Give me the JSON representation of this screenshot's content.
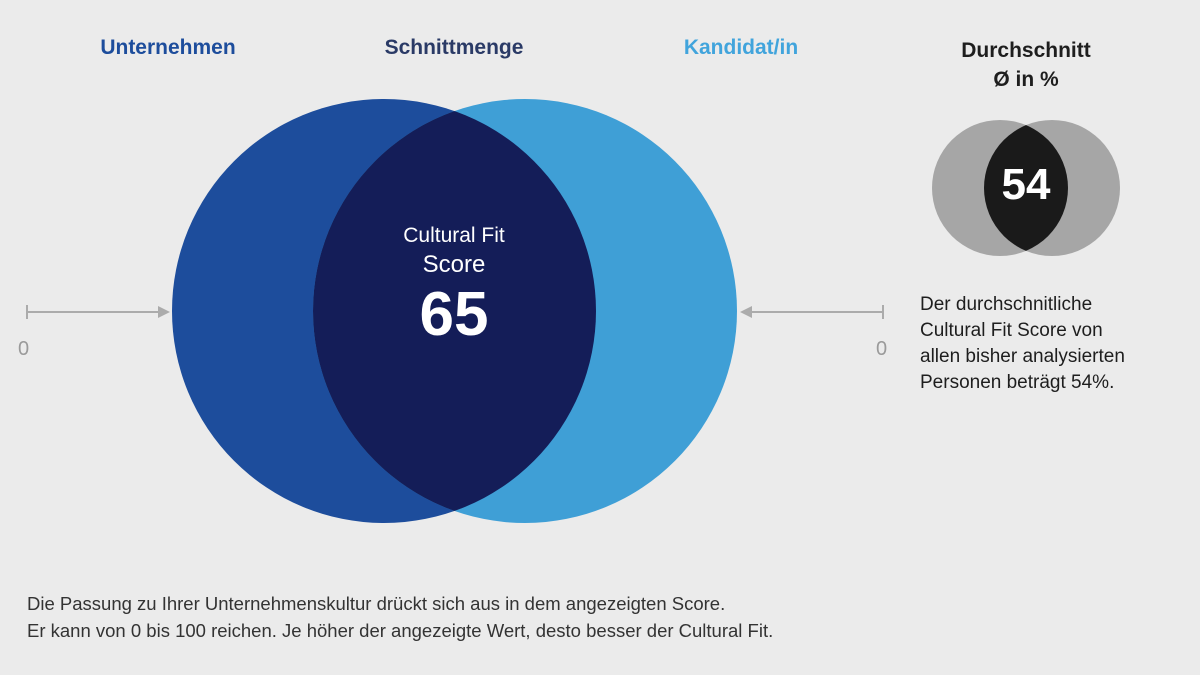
{
  "headers": {
    "company": "Unternehmen",
    "intersection": "Schnittmenge",
    "candidate": "Kandidat/in"
  },
  "score": {
    "label_line1": "Cultural Fit",
    "label_line2": "Score",
    "value": "65"
  },
  "scale": {
    "left_min": "0",
    "right_min": "0"
  },
  "average": {
    "title_line1": "Durchschnitt",
    "title_line2": "Ø in %",
    "value": "54",
    "description_lines": [
      "Der durchschnitliche",
      "Cultural Fit Score von",
      "allen bisher analysierten",
      "Personen beträgt 54%."
    ]
  },
  "footer": {
    "line1": "Die Passung zu Ihrer Unternehmenskultur drückt sich aus in dem angezeigten Score.",
    "line2": "Er kann von 0 bis 100 reichen. Je höher der angezeigte Wert, desto besser der Cultural Fit."
  },
  "colors": {
    "company": "#1d4d9c",
    "candidate": "#3f9fd6",
    "intersection": "#141d58",
    "average_circles": "#a6a6a6",
    "average_intersection": "#1a1a1a"
  }
}
